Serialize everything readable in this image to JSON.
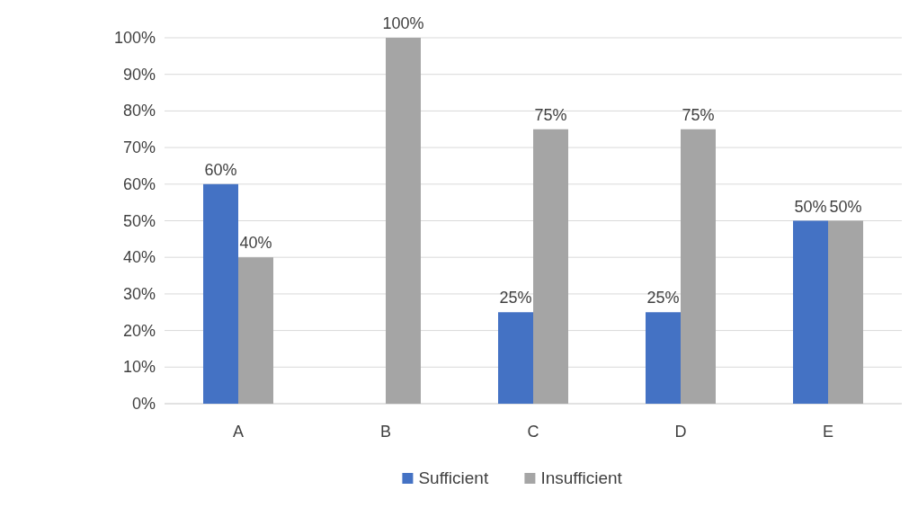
{
  "chart_data": {
    "type": "bar",
    "categories": [
      "A",
      "B",
      "C",
      "D",
      "E"
    ],
    "series": [
      {
        "name": "Sufficient",
        "color": "#4472c4",
        "values": [
          60,
          0,
          25,
          25,
          50
        ],
        "value_labels": [
          "60%",
          null,
          "25%",
          "25%",
          "50%"
        ]
      },
      {
        "name": "Insufficient",
        "color": "#a5a5a5",
        "values": [
          40,
          100,
          75,
          75,
          50
        ],
        "value_labels": [
          "40%",
          "100%",
          "75%",
          "75%",
          "50%"
        ]
      }
    ],
    "ylim": [
      0,
      100
    ],
    "yticks": [
      {
        "value": 0,
        "label": "0%"
      },
      {
        "value": 10,
        "label": "10%"
      },
      {
        "value": 20,
        "label": "20%"
      },
      {
        "value": 30,
        "label": "30%"
      },
      {
        "value": 40,
        "label": "40%"
      },
      {
        "value": 50,
        "label": "50%"
      },
      {
        "value": 60,
        "label": "60%"
      },
      {
        "value": 70,
        "label": "70%"
      },
      {
        "value": 80,
        "label": "80%"
      },
      {
        "value": 90,
        "label": "90%"
      },
      {
        "value": 100,
        "label": "100%"
      }
    ],
    "grid": "y",
    "legend": "bottom"
  }
}
